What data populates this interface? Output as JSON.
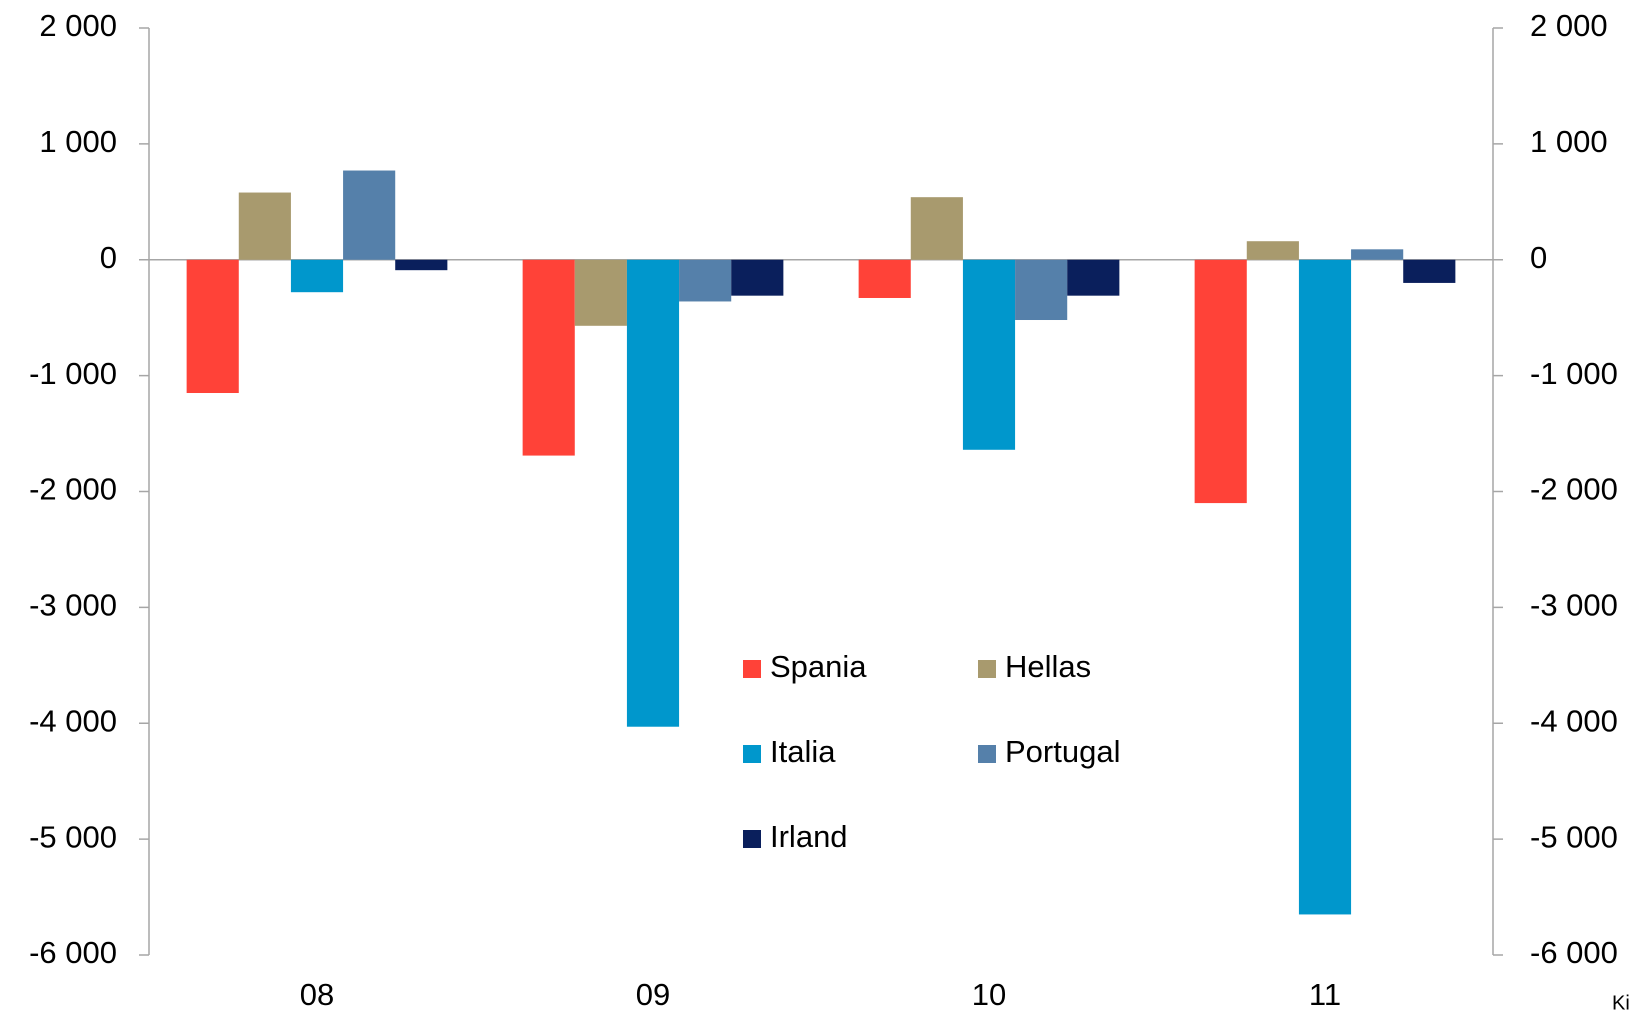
{
  "chart_data": {
    "type": "bar",
    "categories": [
      "08",
      "09",
      "10",
      "11"
    ],
    "series": [
      {
        "name": "Spania",
        "color": "#ff4238",
        "values": [
          -1150,
          -1690,
          -330,
          -2100
        ]
      },
      {
        "name": "Hellas",
        "color": "#a89a6e",
        "values": [
          580,
          -570,
          540,
          160
        ]
      },
      {
        "name": "Italia",
        "color": "#0097cc",
        "values": [
          -280,
          -4030,
          -1640,
          -5650
        ]
      },
      {
        "name": "Portugal",
        "color": "#5580aa",
        "values": [
          770,
          -360,
          -520,
          90
        ]
      },
      {
        "name": "Irland",
        "color": "#0a1f5c",
        "values": [
          -90,
          -310,
          -310,
          -200
        ]
      }
    ],
    "ylim": [
      -6000,
      2000
    ],
    "yticks": [
      {
        "value": -6000,
        "label": "-6 000"
      },
      {
        "value": -5000,
        "label": "-5 000"
      },
      {
        "value": -4000,
        "label": "-4 000"
      },
      {
        "value": -3000,
        "label": "-3 000"
      },
      {
        "value": -2000,
        "label": "-2 000"
      },
      {
        "value": -1000,
        "label": "-1 000"
      },
      0,
      {
        "value": 1000,
        "label": "1 000"
      },
      {
        "value": 2000,
        "label": "2 000"
      }
    ],
    "y2lim": [
      -6000,
      2000
    ],
    "y2ticks": [
      {
        "value": -6000,
        "label": "-6 000"
      },
      {
        "value": -5000,
        "label": "-5 000"
      },
      {
        "value": -4000,
        "label": "-4 000"
      },
      {
        "value": -3000,
        "label": "-3 000"
      },
      {
        "value": -2000,
        "label": "-2 000"
      },
      {
        "value": -1000,
        "label": "-1 000"
      },
      0,
      {
        "value": 1000,
        "label": "1 000"
      },
      {
        "value": 2000,
        "label": "2 000"
      }
    ],
    "source": "Ki"
  }
}
